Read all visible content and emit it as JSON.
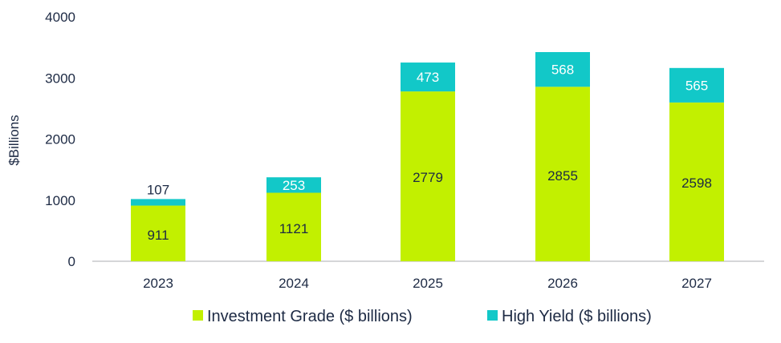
{
  "chart_data": {
    "type": "bar",
    "stacked": true,
    "title": "",
    "xlabel": "",
    "ylabel": "$Billions",
    "ylim": [
      0,
      4000
    ],
    "yticks": [
      0,
      1000,
      2000,
      3000,
      4000
    ],
    "categories": [
      "2023",
      "2024",
      "2025",
      "2026",
      "2027"
    ],
    "series": [
      {
        "name": "Investment Grade ($ billions)",
        "color": "#c2f000",
        "values": [
          911,
          1121,
          2779,
          2855,
          2598
        ]
      },
      {
        "name": "High Yield ($ billions)",
        "color": "#12c8c8",
        "values": [
          107,
          253,
          473,
          568,
          565
        ]
      }
    ],
    "legend_position": "bottom",
    "grid": false
  }
}
